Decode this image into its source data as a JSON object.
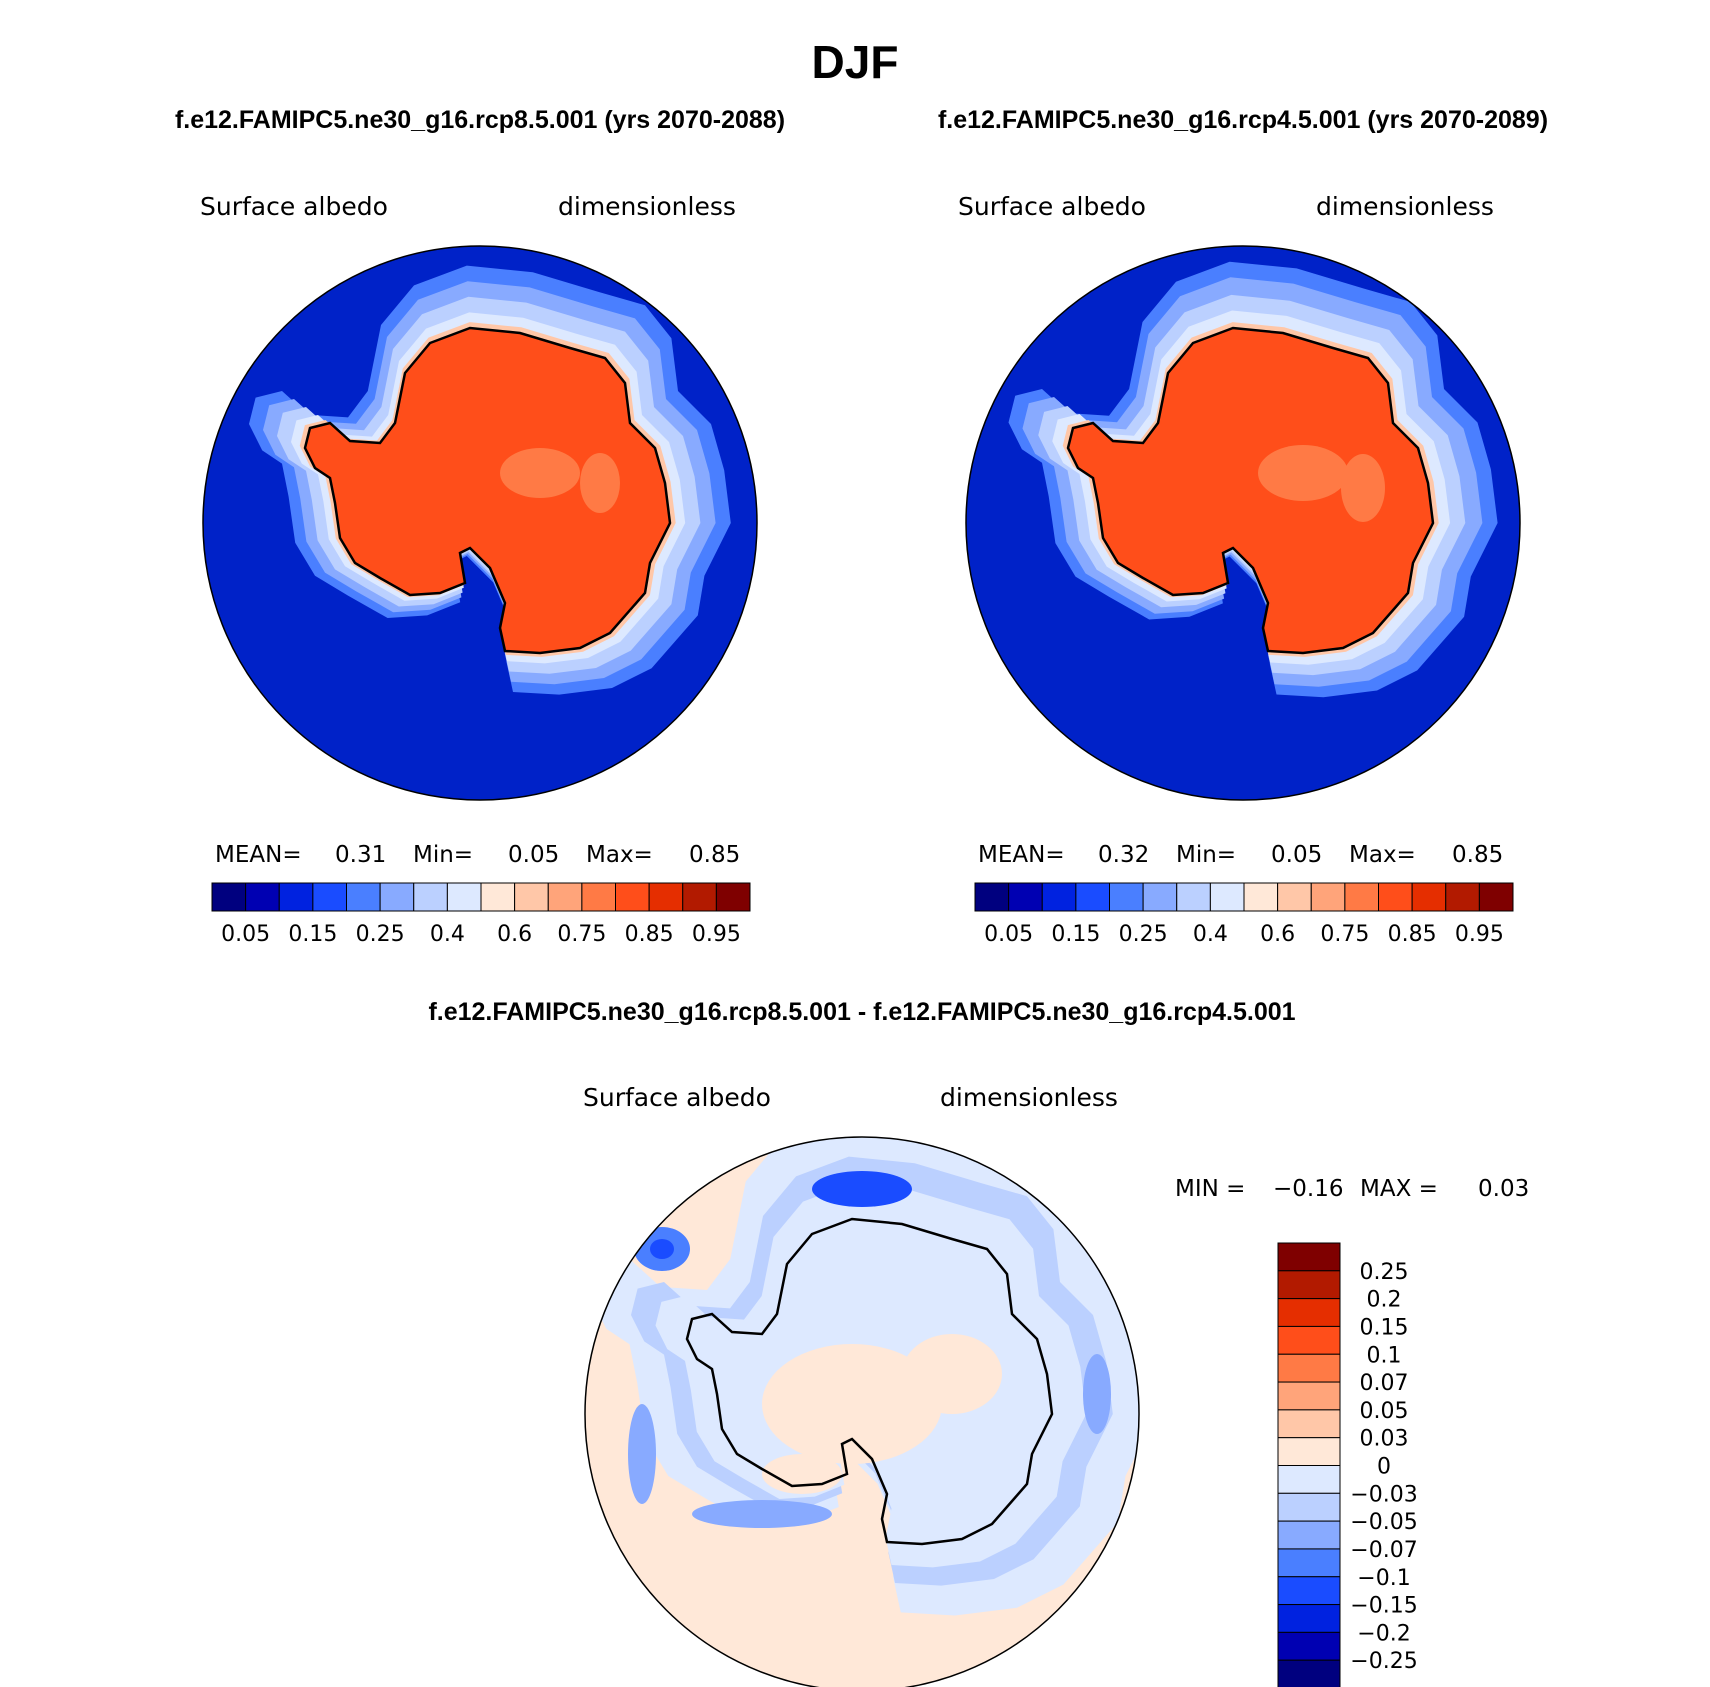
{
  "title": "DJF",
  "header_left": "f.e12.FAMIPC5.ne30_g16.rcp8.5.001 (yrs 2070-2088)",
  "header_right": "f.e12.FAMIPC5.ne30_g16.rcp4.5.001 (yrs 2070-2089)",
  "diff_title": "f.e12.FAMIPC5.ne30_g16.rcp8.5.001 - f.e12.FAMIPC5.ne30_g16.rcp4.5.001",
  "chart_data": [
    {
      "type": "heatmap",
      "name": "rcp85",
      "variable": "Surface albedo",
      "units": "dimensionless",
      "stats": {
        "mean_label": "MEAN=",
        "mean": "0.31",
        "min_label": "Min=",
        "min": "0.05",
        "max_label": "Max=",
        "max": "0.85"
      },
      "colorbar_labels": [
        "0.05",
        "0.15",
        "0.25",
        "0.4",
        "0.6",
        "0.75",
        "0.85",
        "0.95"
      ],
      "colors": [
        "#00007f",
        "#0000b2",
        "#0022e0",
        "#1a4cff",
        "#4a7fff",
        "#88aaff",
        "#bbd0ff",
        "#dde9ff",
        "#ffe8d8",
        "#ffc7a8",
        "#ffa47a",
        "#ff7a45",
        "#ff4e1a",
        "#e52e00",
        "#b21a00",
        "#7f0000"
      ]
    },
    {
      "type": "heatmap",
      "name": "rcp45",
      "variable": "Surface albedo",
      "units": "dimensionless",
      "stats": {
        "mean_label": "MEAN=",
        "mean": "0.32",
        "min_label": "Min=",
        "min": "0.05",
        "max_label": "Max=",
        "max": "0.85"
      },
      "colorbar_labels": [
        "0.05",
        "0.15",
        "0.25",
        "0.4",
        "0.6",
        "0.75",
        "0.85",
        "0.95"
      ],
      "colors": [
        "#00007f",
        "#0000b2",
        "#0022e0",
        "#1a4cff",
        "#4a7fff",
        "#88aaff",
        "#bbd0ff",
        "#dde9ff",
        "#ffe8d8",
        "#ffc7a8",
        "#ffa47a",
        "#ff7a45",
        "#ff4e1a",
        "#e52e00",
        "#b21a00",
        "#7f0000"
      ]
    },
    {
      "type": "heatmap",
      "name": "difference",
      "variable": "Surface albedo",
      "units": "dimensionless",
      "stats": {
        "min_label": "MIN =",
        "min": "−0.16",
        "max_label": "MAX =",
        "max": "0.03"
      },
      "colorbar_labels": [
        "0.25",
        "0.2",
        "0.15",
        "0.1",
        "0.07",
        "0.05",
        "0.03",
        "0",
        "−0.03",
        "−0.05",
        "−0.07",
        "−0.1",
        "−0.15",
        "−0.2",
        "−0.25"
      ],
      "colors": [
        "#7f0000",
        "#b21a00",
        "#e52e00",
        "#ff4e1a",
        "#ff7a45",
        "#ffa47a",
        "#ffc7a8",
        "#ffe8d8",
        "#dde9ff",
        "#bbd0ff",
        "#88aaff",
        "#4a7fff",
        "#1a4cff",
        "#0022e0",
        "#0000b2",
        "#00007f"
      ]
    }
  ]
}
